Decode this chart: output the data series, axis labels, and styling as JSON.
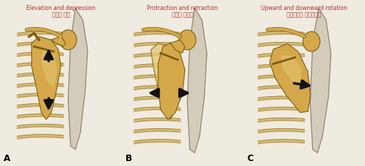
{
  "title_en_A": "Elevation and depression",
  "title_ko_A": "올림과 내림",
  "title_en_B": "Protraction and retraction",
  "title_ko_B": "내말과 뒤당김",
  "title_en_C": "Upward and downward rotation",
  "title_ko_C": "위쪽돌림과 아래쪽돌림",
  "label_A": "A",
  "label_B": "B",
  "label_C": "C",
  "bg_color": "#f0ebe0",
  "title_en_color": "#b03030",
  "title_ko_color": "#b03030",
  "bone_fill": "#d4a84b",
  "bone_light": "#e8c878",
  "bone_dark": "#a07828",
  "bone_edge": "#7a5c10",
  "rib_fill": "#d4b870",
  "rib_edge": "#a08030",
  "skin_fill": "#c8c0a8",
  "skin_edge": "#908878",
  "arrow_color": "#111111",
  "figsize": [
    5.12,
    2.33
  ],
  "dpi": 100
}
